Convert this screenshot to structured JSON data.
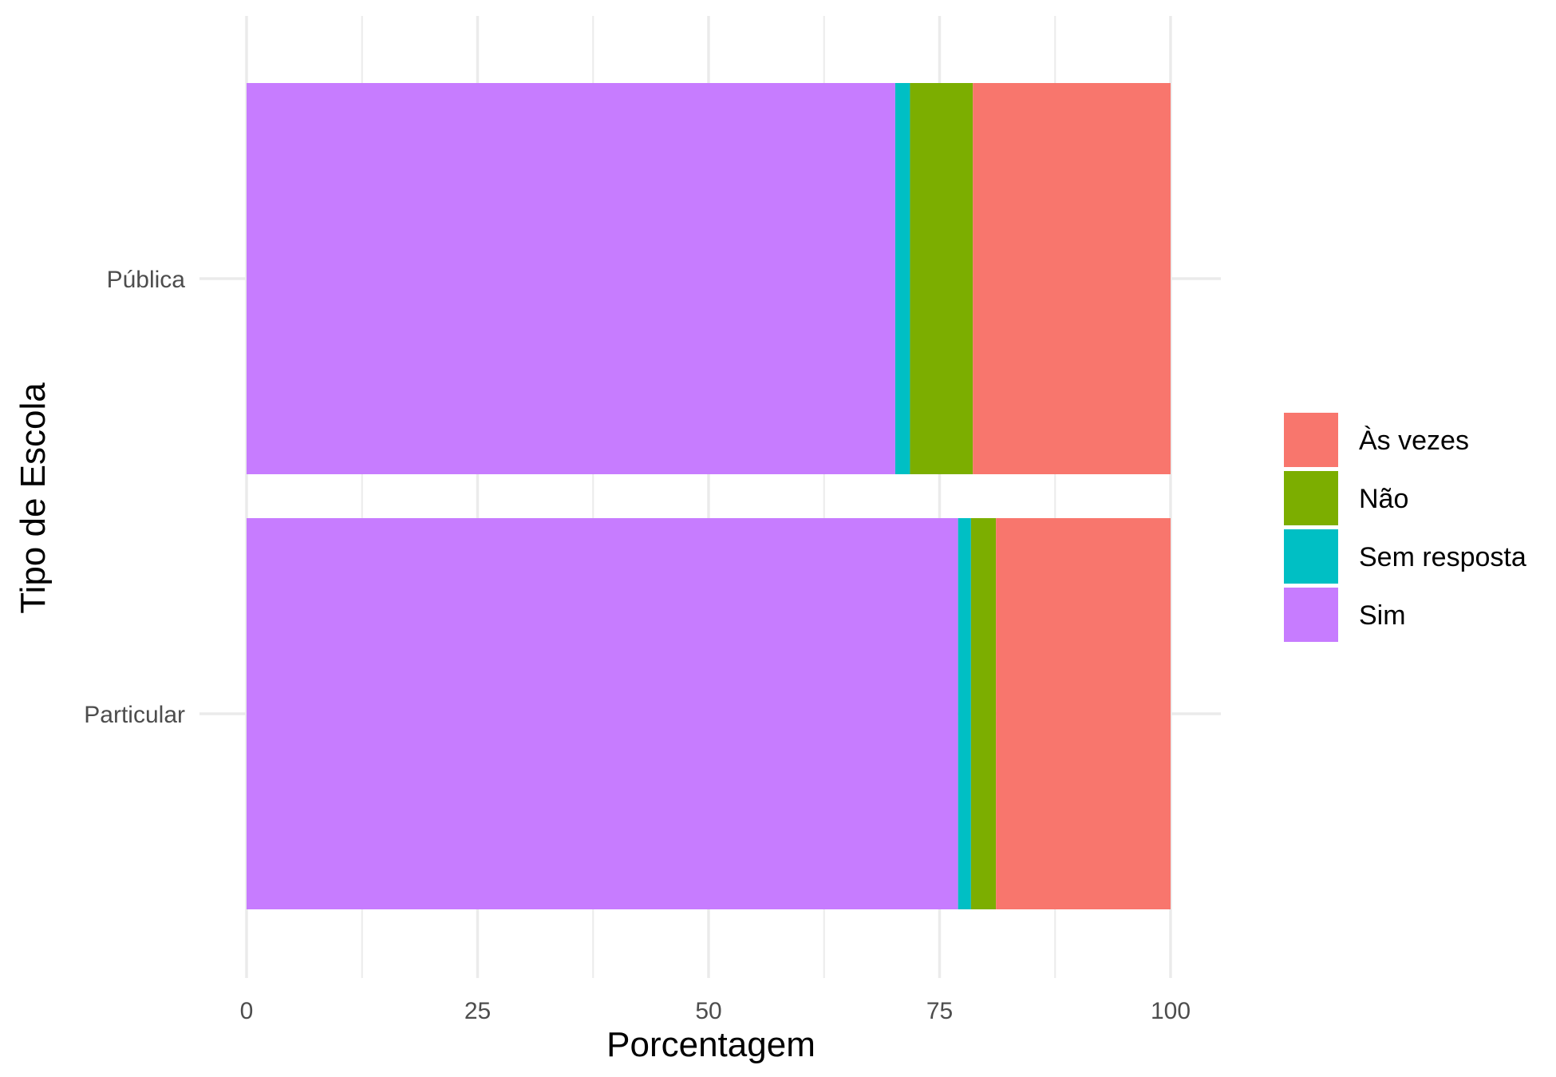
{
  "chart_data": {
    "type": "bar",
    "orientation": "horizontal",
    "stacked": true,
    "xlabel": "Porcentagem",
    "ylabel": "Tipo de Escola",
    "xlim": [
      0,
      100
    ],
    "x_ticks": [
      0,
      25,
      50,
      75,
      100
    ],
    "x_tick_labels": [
      "0",
      "25",
      "50",
      "75",
      "100"
    ],
    "categories": [
      "Pública",
      "Particular"
    ],
    "series": [
      {
        "name": "Sim",
        "color": "#C77CFF",
        "values": [
          70.2,
          77.0
        ]
      },
      {
        "name": "Sem resposta",
        "color": "#00BFC4",
        "values": [
          1.6,
          1.4
        ]
      },
      {
        "name": "Não",
        "color": "#7CAE00",
        "values": [
          6.8,
          2.7
        ]
      },
      {
        "name": "Às vezes",
        "color": "#F8766D",
        "values": [
          21.4,
          18.9
        ]
      }
    ],
    "legend": {
      "position": "right",
      "order": [
        "Às vezes",
        "Não",
        "Sem resposta",
        "Sim"
      ]
    },
    "grid": true
  }
}
